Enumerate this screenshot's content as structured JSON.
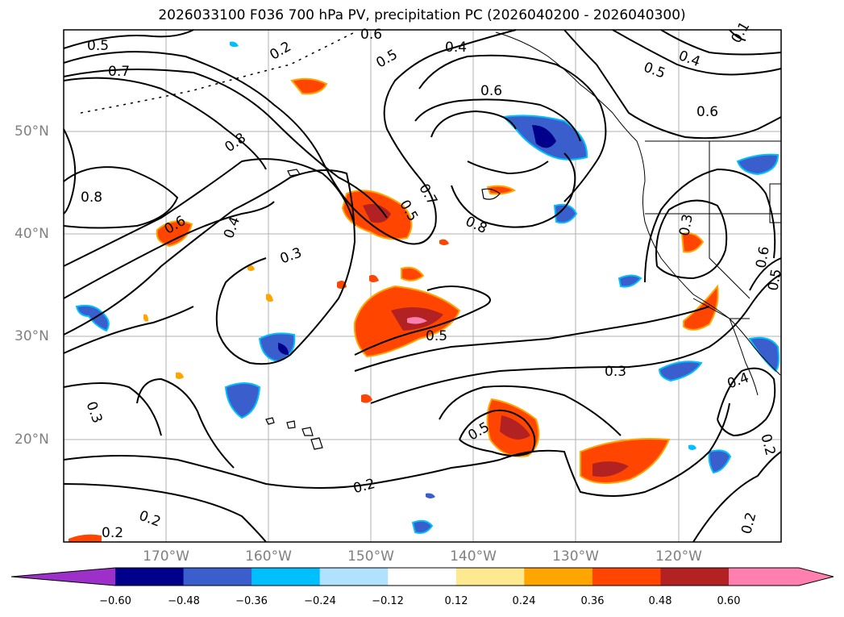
{
  "title": "2026033100 F036 700 hPa PV, precipitation PC (2026040200 - 2026040300)",
  "axes": {
    "lon_labels": [
      "170°W",
      "160°W",
      "150°W",
      "140°W",
      "130°W",
      "120°W"
    ],
    "lat_labels": [
      "50°N",
      "40°N",
      "30°N",
      "20°N"
    ]
  },
  "contour_labels": [
    "0.5",
    "0.6",
    "0.2",
    "0.5",
    "0.4",
    "0.5",
    "0.4",
    "0.1",
    "0.7",
    "0.6",
    "0.6",
    "0.8",
    "0.8",
    "0.6",
    "0.4",
    "0.5",
    "0.7",
    "0.8",
    "0.3",
    "0.3",
    "0.6",
    "0.5",
    "0.5",
    "0.3",
    "0.4",
    "0.5",
    "0.2",
    "0.2",
    "0.2",
    "0.3",
    "0.2",
    "0.2"
  ],
  "colorbar": {
    "colors": [
      "#9d30c8",
      "#00008b",
      "#3a5fcd",
      "#00bfff",
      "#b0e2ff",
      "#ffffff",
      "#fde98f",
      "#ffa500",
      "#ff4500",
      "#b22222",
      "#ff7fae"
    ],
    "tick_labels": [
      "−0.60",
      "−0.48",
      "−0.36",
      "−0.24",
      "−0.12",
      "0.12",
      "0.24",
      "0.36",
      "0.48",
      "0.60"
    ]
  },
  "shading_colors": {
    "neg_light": "#b0e2ff",
    "neg_mid": "#00bfff",
    "neg_blue": "#3a5fcd",
    "neg_dark": "#00008b",
    "pos_light": "#fde98f",
    "pos_mid": "#ffa500",
    "pos_red": "#ff4500",
    "pos_dark": "#b22222",
    "pos_pink": "#ff7fae"
  }
}
